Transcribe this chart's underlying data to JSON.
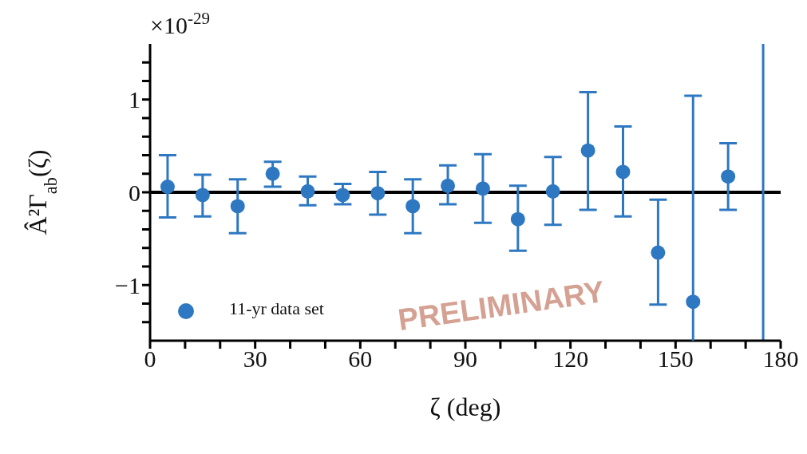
{
  "chart_data": {
    "type": "scatter",
    "xlabel": "ζ (deg)",
    "ylabel": "Â²Γ$_{ab}$(ζ)",
    "x": [
      5,
      15,
      25,
      35,
      45,
      55,
      65,
      75,
      85,
      95,
      105,
      115,
      125,
      135,
      145,
      155,
      165
    ],
    "series": [
      {
        "name": "11-yr data set",
        "color": "#2e78c2",
        "values": [
          0.06,
          -0.03,
          -0.15,
          0.2,
          0.01,
          -0.03,
          -0.01,
          -0.15,
          0.07,
          0.04,
          -0.29,
          0.01,
          0.45,
          0.22,
          -0.65,
          -1.18,
          0.17
        ],
        "errors": [
          [
            -0.27,
            0.4
          ],
          [
            -0.26,
            0.19
          ],
          [
            -0.44,
            0.14
          ],
          [
            0.06,
            0.33
          ],
          [
            -0.14,
            0.17
          ],
          [
            -0.13,
            0.09
          ],
          [
            -0.24,
            0.22
          ],
          [
            -0.44,
            0.14
          ],
          [
            -0.13,
            0.29
          ],
          [
            -0.33,
            0.41
          ],
          [
            -0.63,
            0.07
          ],
          [
            -0.35,
            0.38
          ],
          [
            -0.19,
            1.08
          ],
          [
            -0.26,
            0.71
          ],
          [
            -1.21,
            -0.08
          ],
          [
            -3.4,
            1.04
          ],
          [
            -0.19,
            0.53
          ]
        ]
      }
    ],
    "marker": "circle",
    "xlim": [
      0,
      180
    ],
    "xticks": [
      0,
      {
        "value": 10,
        "label": null
      },
      {
        "value": 20,
        "label": null
      },
      30,
      {
        "value": 40,
        "label": null
      },
      {
        "value": 50,
        "label": null
      },
      60,
      {
        "value": 70,
        "label": null
      },
      {
        "value": 80,
        "label": null
      },
      90,
      {
        "value": 100,
        "label": null
      },
      {
        "value": 110,
        "label": null
      },
      120,
      {
        "value": 130,
        "label": null
      },
      {
        "value": 140,
        "label": null
      },
      150,
      {
        "value": 160,
        "label": null
      },
      {
        "value": 170,
        "label": null
      },
      180
    ],
    "ylim": [
      -1.6,
      1.6
    ],
    "yticks": [
      {
        "value": -1.4,
        "label": null
      },
      {
        "value": -1.2,
        "label": null
      },
      {
        "value": -1,
        "label": "−1"
      },
      {
        "value": -0.8,
        "label": null
      },
      {
        "value": -0.6,
        "label": null
      },
      {
        "value": -0.4,
        "label": null
      },
      {
        "value": -0.2,
        "label": null
      },
      0,
      {
        "value": 0.2,
        "label": null
      },
      {
        "value": 0.4,
        "label": null
      },
      {
        "value": 0.6,
        "label": null
      },
      {
        "value": 0.8,
        "label": null
      },
      1,
      {
        "value": 1.2,
        "label": null
      },
      {
        "value": 1.4,
        "label": null
      }
    ],
    "ref_lines": [
      {
        "axis": "y",
        "value": 0,
        "color": "#000000"
      },
      {
        "axis": "x",
        "value": 175,
        "color": "#2e78c2"
      }
    ],
    "legend": "bottom left",
    "grid": false,
    "annotations": [
      "×10$^{-29}$",
      "PRELIMINARY"
    ]
  }
}
